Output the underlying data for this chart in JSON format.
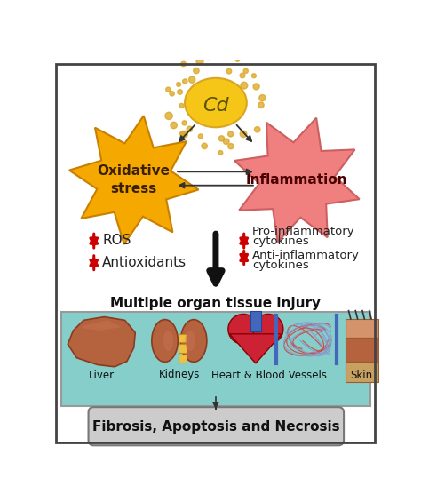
{
  "bg_color": "#ffffff",
  "border_color": "#444444",
  "cd_color": "#F5C518",
  "cd_edge": "#DAA520",
  "cd_label": "Cd",
  "cd_dot_color": "#DAA520",
  "ox_star_color": "#F5A800",
  "ox_star_edge": "#C88000",
  "ox_label": "Oxidative\nstress",
  "inf_star_color": "#F08080",
  "inf_star_edge": "#CC6060",
  "inf_label": "Inflammation",
  "ros_arrow_color": "#CC0000",
  "ros_text": "ROS",
  "antioxidant_text": "Antioxidants",
  "pro_line1": "Pro-inflammatory",
  "pro_line2": "cytokines",
  "anti_line1": "Anti-inflammatory",
  "anti_line2": "cytokines",
  "injury_text": "Multiple organ tissue injury",
  "organ_box_color": "#85CECA",
  "organ_box_edge": "#999999",
  "organ_labels": [
    "Liver",
    "Kidneys",
    "Heart & Blood Vessels",
    "Skin"
  ],
  "bottom_box_color": "#CCCCCC",
  "bottom_box_edge": "#777777",
  "bottom_text": "Fibrosis, Apoptosis and Necrosis",
  "arrow_color": "#333333",
  "black_arrow_color": "#111111"
}
